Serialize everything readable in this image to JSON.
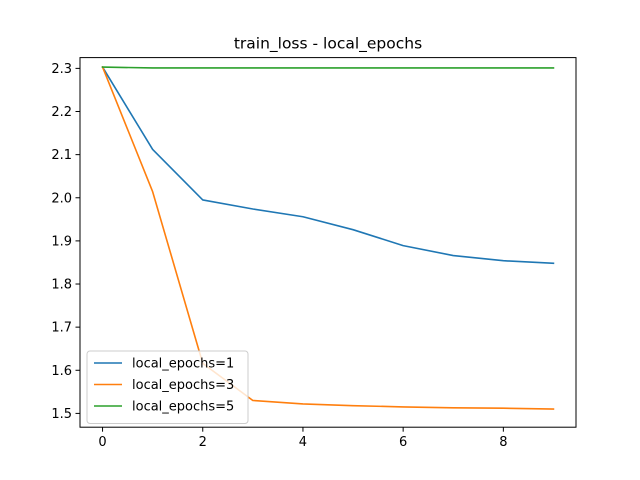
{
  "chart_data": {
    "type": "line",
    "title": "train_loss - local_epochs",
    "xlabel": "",
    "ylabel": "",
    "xlim": [
      -0.45,
      9.45
    ],
    "ylim": [
      1.468,
      2.325
    ],
    "x_ticks": [
      0,
      2,
      4,
      6,
      8
    ],
    "x_tick_labels": [
      "0",
      "2",
      "4",
      "6",
      "8"
    ],
    "y_ticks": [
      1.5,
      1.6,
      1.7,
      1.8,
      1.9,
      2.0,
      2.1,
      2.2,
      2.3
    ],
    "y_tick_labels": [
      "1.5",
      "1.6",
      "1.7",
      "1.8",
      "1.9",
      "2.0",
      "2.1",
      "2.2",
      "2.3"
    ],
    "grid": false,
    "legend_position": "lower-left",
    "x": [
      0,
      1,
      2,
      3,
      4,
      5,
      6,
      7,
      8,
      9
    ],
    "series": [
      {
        "name": "local_epochs=1",
        "color": "#1f77b4",
        "values": [
          2.303,
          2.112,
          1.995,
          1.974,
          1.956,
          1.926,
          1.889,
          1.866,
          1.854,
          1.848
        ]
      },
      {
        "name": "local_epochs=3",
        "color": "#ff7f0e",
        "values": [
          2.303,
          2.014,
          1.616,
          1.53,
          1.522,
          1.518,
          1.515,
          1.513,
          1.512,
          1.51
        ]
      },
      {
        "name": "local_epochs=5",
        "color": "#2ca02c",
        "values": [
          2.303,
          2.301,
          2.301,
          2.301,
          2.301,
          2.301,
          2.301,
          2.301,
          2.301,
          2.301
        ]
      }
    ]
  }
}
